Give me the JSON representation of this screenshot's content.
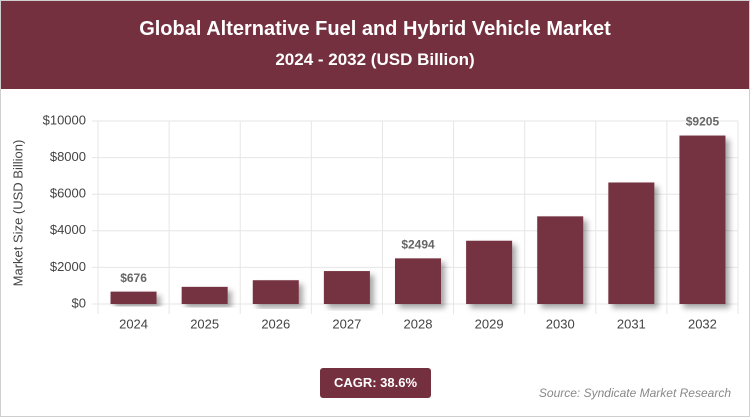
{
  "chart_data": {
    "type": "bar",
    "title": "Global Alternative Fuel and Hybrid Vehicle Market",
    "subtitle": "2024 - 2032 (USD Billion)",
    "y_label": "Market Size (USD Billion)",
    "categories": [
      "2024",
      "2025",
      "2026",
      "2027",
      "2028",
      "2029",
      "2030",
      "2031",
      "2032"
    ],
    "values": [
      676,
      937,
      1299,
      1800,
      2494,
      3457,
      4790,
      6640,
      9205
    ],
    "value_labels": [
      "$676",
      null,
      null,
      null,
      "$2494",
      null,
      null,
      null,
      "$9205"
    ],
    "color": "#74303f",
    "ylim": [
      0,
      10000
    ],
    "yticks": [
      {
        "value": 0,
        "label": "$0"
      },
      {
        "value": 2000,
        "label": "$2000"
      },
      {
        "value": 4000,
        "label": "$4000"
      },
      {
        "value": 6000,
        "label": "$6000"
      },
      {
        "value": 8000,
        "label": "$8000"
      },
      {
        "value": 10000,
        "label": "$10000"
      }
    ],
    "grid": true,
    "annotation": "CAGR: 38.6%",
    "source": "Source: Syndicate Market Research"
  }
}
